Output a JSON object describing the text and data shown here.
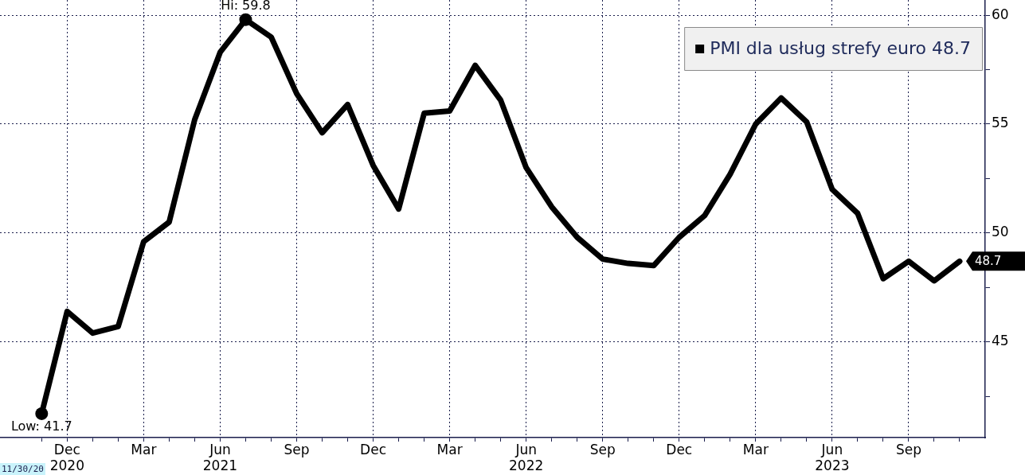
{
  "chart_data": {
    "type": "line",
    "x": [
      "2020-11",
      "2020-12",
      "2021-01",
      "2021-02",
      "2021-03",
      "2021-04",
      "2021-05",
      "2021-06",
      "2021-07",
      "2021-08",
      "2021-09",
      "2021-10",
      "2021-11",
      "2021-12",
      "2022-01",
      "2022-02",
      "2022-03",
      "2022-04",
      "2022-05",
      "2022-06",
      "2022-07",
      "2022-08",
      "2022-09",
      "2022-10",
      "2022-11",
      "2022-12",
      "2023-01",
      "2023-02",
      "2023-03",
      "2023-04",
      "2023-05",
      "2023-06",
      "2023-07",
      "2023-08",
      "2023-09",
      "2023-10",
      "2023-11"
    ],
    "series": [
      {
        "name": "PMI dla usług strefy euro 48.7",
        "color": "#000000",
        "values": [
          41.7,
          46.4,
          45.4,
          45.7,
          49.6,
          50.5,
          55.2,
          58.3,
          59.8,
          59.0,
          56.4,
          54.6,
          55.9,
          53.1,
          51.1,
          55.5,
          55.6,
          57.7,
          56.1,
          53.0,
          51.2,
          49.8,
          48.8,
          48.6,
          48.5,
          49.8,
          50.8,
          52.7,
          55.0,
          56.2,
          55.1,
          52.0,
          50.9,
          47.9,
          48.7,
          47.8,
          48.7
        ],
        "value_labels": [
          null,
          null,
          null,
          null,
          null,
          null,
          null,
          null,
          null,
          null,
          null,
          null,
          null,
          null,
          null,
          null,
          null,
          null,
          null,
          null,
          null,
          null,
          null,
          null,
          null,
          null,
          null,
          null,
          null,
          null,
          null,
          null,
          null,
          null,
          null,
          null,
          "48.7"
        ]
      }
    ],
    "xlim": [
      "2020-09-12",
      "2023-12-01"
    ],
    "xticks": [
      {
        "value": "2020-11",
        "label": null
      },
      {
        "value": "2020-12",
        "label": "Dec\n2020"
      },
      {
        "value": "2021-01",
        "label": null
      },
      {
        "value": "2021-02",
        "label": null
      },
      {
        "value": "2021-03",
        "label": "Mar"
      },
      {
        "value": "2021-04",
        "label": null
      },
      {
        "value": "2021-05",
        "label": null
      },
      {
        "value": "2021-06",
        "label": "Jun\n2021"
      },
      {
        "value": "2021-07",
        "label": null
      },
      {
        "value": "2021-08",
        "label": null
      },
      {
        "value": "2021-09",
        "label": "Sep"
      },
      {
        "value": "2021-10",
        "label": null
      },
      {
        "value": "2021-11",
        "label": null
      },
      {
        "value": "2021-12",
        "label": "Dec"
      },
      {
        "value": "2022-01",
        "label": null
      },
      {
        "value": "2022-02",
        "label": null
      },
      {
        "value": "2022-03",
        "label": "Mar"
      },
      {
        "value": "2022-04",
        "label": null
      },
      {
        "value": "2022-05",
        "label": null
      },
      {
        "value": "2022-06",
        "label": "Jun\n2022"
      },
      {
        "value": "2022-07",
        "label": null
      },
      {
        "value": "2022-08",
        "label": null
      },
      {
        "value": "2022-09",
        "label": "Sep"
      },
      {
        "value": "2022-10",
        "label": null
      },
      {
        "value": "2022-11",
        "label": null
      },
      {
        "value": "2022-12",
        "label": "Dec"
      },
      {
        "value": "2023-01",
        "label": null
      },
      {
        "value": "2023-02",
        "label": null
      },
      {
        "value": "2023-03",
        "label": "Mar"
      },
      {
        "value": "2023-04",
        "label": null
      },
      {
        "value": "2023-05",
        "label": null
      },
      {
        "value": "2023-06",
        "label": "Jun\n2023"
      },
      {
        "value": "2023-07",
        "label": null
      },
      {
        "value": "2023-08",
        "label": null
      },
      {
        "value": "2023-09",
        "label": "Sep"
      },
      {
        "value": "2023-10",
        "label": null
      },
      {
        "value": "2023-11",
        "label": null
      }
    ],
    "ylim": [
      40.6,
      60.7
    ],
    "yticks": [
      {
        "value": 42.5,
        "label": null
      },
      45,
      {
        "value": 47.5,
        "label": null
      },
      50,
      {
        "value": 52.5,
        "label": null
      },
      55,
      {
        "value": 57.5,
        "label": null
      },
      60
    ],
    "grid": true,
    "legend": "top right",
    "marker": "none",
    "line_style": "solid",
    "annotations": [
      {
        "text": "Hi: 59.8",
        "x": "2021-07",
        "y": 59.8
      },
      {
        "text": "Low: 41.7",
        "x": "2020-11",
        "y": 41.7
      },
      "11/30/20"
    ]
  }
}
